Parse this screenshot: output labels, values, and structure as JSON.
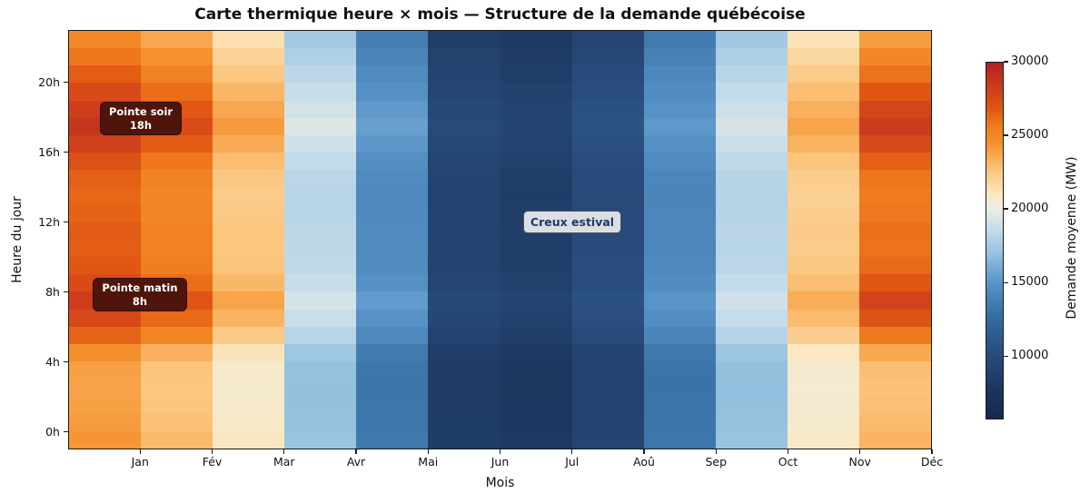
{
  "figure": {
    "title": "Carte thermique heure × mois — Structure de la demande québécoise"
  },
  "axes": {
    "xlabel": "Mois",
    "ylabel": "Heure du jour"
  },
  "colorbar": {
    "label": "Demande moyenne (MW)",
    "tick_values": [
      30000,
      25000,
      20000,
      15000,
      10000
    ],
    "tick_labels": [
      "30000",
      "25000",
      "20000",
      "15000",
      "10000"
    ],
    "vmin": 5700,
    "vmax": 30000
  },
  "annotations": {
    "pointe_soir": {
      "line1": "Pointe soir",
      "line2": "18h"
    },
    "pointe_matin": {
      "line1": "Pointe matin",
      "line2": "8h"
    },
    "creux_estival": {
      "text": "Creux estival"
    }
  },
  "colors": {
    "annotation_dark_bg": "#4f150a",
    "annotation_dark_border": "#2f0e06",
    "annotation_dark_text": "#ffffff",
    "annotation_light_bg": "#dbdfe4",
    "annotation_light_border": "#4a5560",
    "annotation_light_text": "#1e3a66",
    "colormap_stops": [
      [
        0.0,
        "#16294f"
      ],
      [
        0.09,
        "#1d3760"
      ],
      [
        0.18,
        "#284c7c"
      ],
      [
        0.28,
        "#336a9f"
      ],
      [
        0.38,
        "#5792c7"
      ],
      [
        0.46,
        "#93c0de"
      ],
      [
        0.53,
        "#c3dbea"
      ],
      [
        0.59,
        "#edeee2"
      ],
      [
        0.63,
        "#fbe7c0"
      ],
      [
        0.7,
        "#fbc47c"
      ],
      [
        0.77,
        "#f5922e"
      ],
      [
        0.82,
        "#f07c1e"
      ],
      [
        0.87,
        "#e05713"
      ],
      [
        0.92,
        "#d0401d"
      ],
      [
        0.96,
        "#c2331e"
      ],
      [
        1.0,
        "#b01d24"
      ]
    ]
  },
  "chart_data": {
    "type": "heatmap",
    "title": "Carte thermique heure × mois — Structure de la demande québécoise",
    "xlabel": "Mois",
    "ylabel": "Heure du jour",
    "value_label": "Demande moyenne (MW)",
    "x_categories": [
      "Jan",
      "Fév",
      "Mar",
      "Avr",
      "Mai",
      "Jun",
      "Jul",
      "Aoû",
      "Sep",
      "Oct",
      "Nov",
      "Déc"
    ],
    "y_hours": [
      0,
      1,
      2,
      3,
      4,
      5,
      6,
      7,
      8,
      9,
      10,
      11,
      12,
      13,
      14,
      15,
      16,
      17,
      18,
      19,
      20,
      21,
      22,
      23
    ],
    "y_tick_hours": [
      0,
      4,
      8,
      12,
      16,
      20
    ],
    "y_tick_labels": [
      "0h",
      "4h",
      "8h",
      "12h",
      "16h",
      "20h"
    ],
    "vmin": 5700,
    "vmax": 30000,
    "values_by_hour": [
      [
        24300,
        23050,
        20950,
        17150,
        13400,
        8550,
        7950,
        9225,
        13250,
        17100,
        20800,
        23300
      ],
      [
        24060,
        22818,
        20782,
        17030,
        13288,
        8478,
        7878,
        9149,
        13146,
        16988,
        20640,
        23028
      ],
      [
        23910,
        22673,
        20677,
        16955,
        13218,
        8433,
        7833,
        9101,
        13081,
        16918,
        20540,
        22858
      ],
      [
        23850,
        22615,
        20635,
        16925,
        13190,
        8415,
        7815,
        9082,
        13055,
        16890,
        20500,
        22790
      ],
      [
        23940,
        22702,
        20698,
        16970,
        13232,
        8442,
        7842,
        9111,
        13094,
        16932,
        20560,
        22892
      ],
      [
        24600,
        23340,
        21160,
        17300,
        13540,
        8640,
        8040,
        9320,
        13380,
        17240,
        21000,
        23640
      ],
      [
        26400,
        25080,
        22420,
        18200,
        14380,
        9180,
        8580,
        9890,
        14160,
        18080,
        22200,
        25680
      ],
      [
        27600,
        26240,
        23260,
        18800,
        14940,
        9540,
        8940,
        10270,
        14680,
        18640,
        23000,
        27040
      ],
      [
        28350,
        26965,
        23785,
        19175,
        15290,
        9765,
        9165,
        10508,
        15005,
        18990,
        23500,
        27890
      ],
      [
        27450,
        26095,
        23155,
        18725,
        14870,
        9495,
        8895,
        10223,
        14615,
        18570,
        22900,
        26870
      ],
      [
        26850,
        25515,
        22735,
        18425,
        14590,
        9315,
        8715,
        10033,
        14355,
        18290,
        22500,
        26190
      ],
      [
        26640,
        25312,
        22588,
        18320,
        14492,
        9252,
        8652,
        9966,
        14264,
        18192,
        22360,
        25952
      ],
      [
        26700,
        25370,
        22630,
        18350,
        14520,
        9270,
        8670,
        9985,
        14290,
        18220,
        22400,
        26020
      ],
      [
        26460,
        25138,
        22462,
        18230,
        14408,
        9198,
        8598,
        9909,
        14186,
        18108,
        22240,
        25748
      ],
      [
        26340,
        25022,
        22378,
        18170,
        14352,
        9162,
        8562,
        9871,
        14134,
        18052,
        22160,
        25612
      ],
      [
        26550,
        25225,
        22525,
        18275,
        14450,
        9225,
        8625,
        9938,
        14225,
        18150,
        22300,
        25850
      ],
      [
        27150,
        25805,
        22945,
        18575,
        14730,
        9405,
        8805,
        10128,
        14485,
        18430,
        22700,
        26530
      ],
      [
        28050,
        26675,
        23575,
        19025,
        15150,
        9675,
        9075,
        10413,
        14875,
        18850,
        23300,
        27550
      ],
      [
        28800,
        27400,
        24100,
        19400,
        15500,
        9900,
        9300,
        10650,
        15200,
        19200,
        23800,
        28400
      ],
      [
        28200,
        26820,
        23680,
        19100,
        15220,
        9720,
        9120,
        10460,
        14940,
        18920,
        23400,
        27720
      ],
      [
        27450,
        26095,
        23155,
        18725,
        14870,
        9495,
        8895,
        10223,
        14615,
        18570,
        22900,
        26870
      ],
      [
        26640,
        25312,
        22588,
        18320,
        14492,
        9252,
        8652,
        9966,
        14264,
        18192,
        22360,
        25952
      ],
      [
        25800,
        24500,
        22000,
        17900,
        14100,
        9000,
        8400,
        9700,
        13900,
        17800,
        21800,
        25000
      ],
      [
        24960,
        23688,
        21412,
        17480,
        13708,
        8748,
        8148,
        9434,
        13536,
        17380,
        21240,
        24048
      ]
    ]
  }
}
